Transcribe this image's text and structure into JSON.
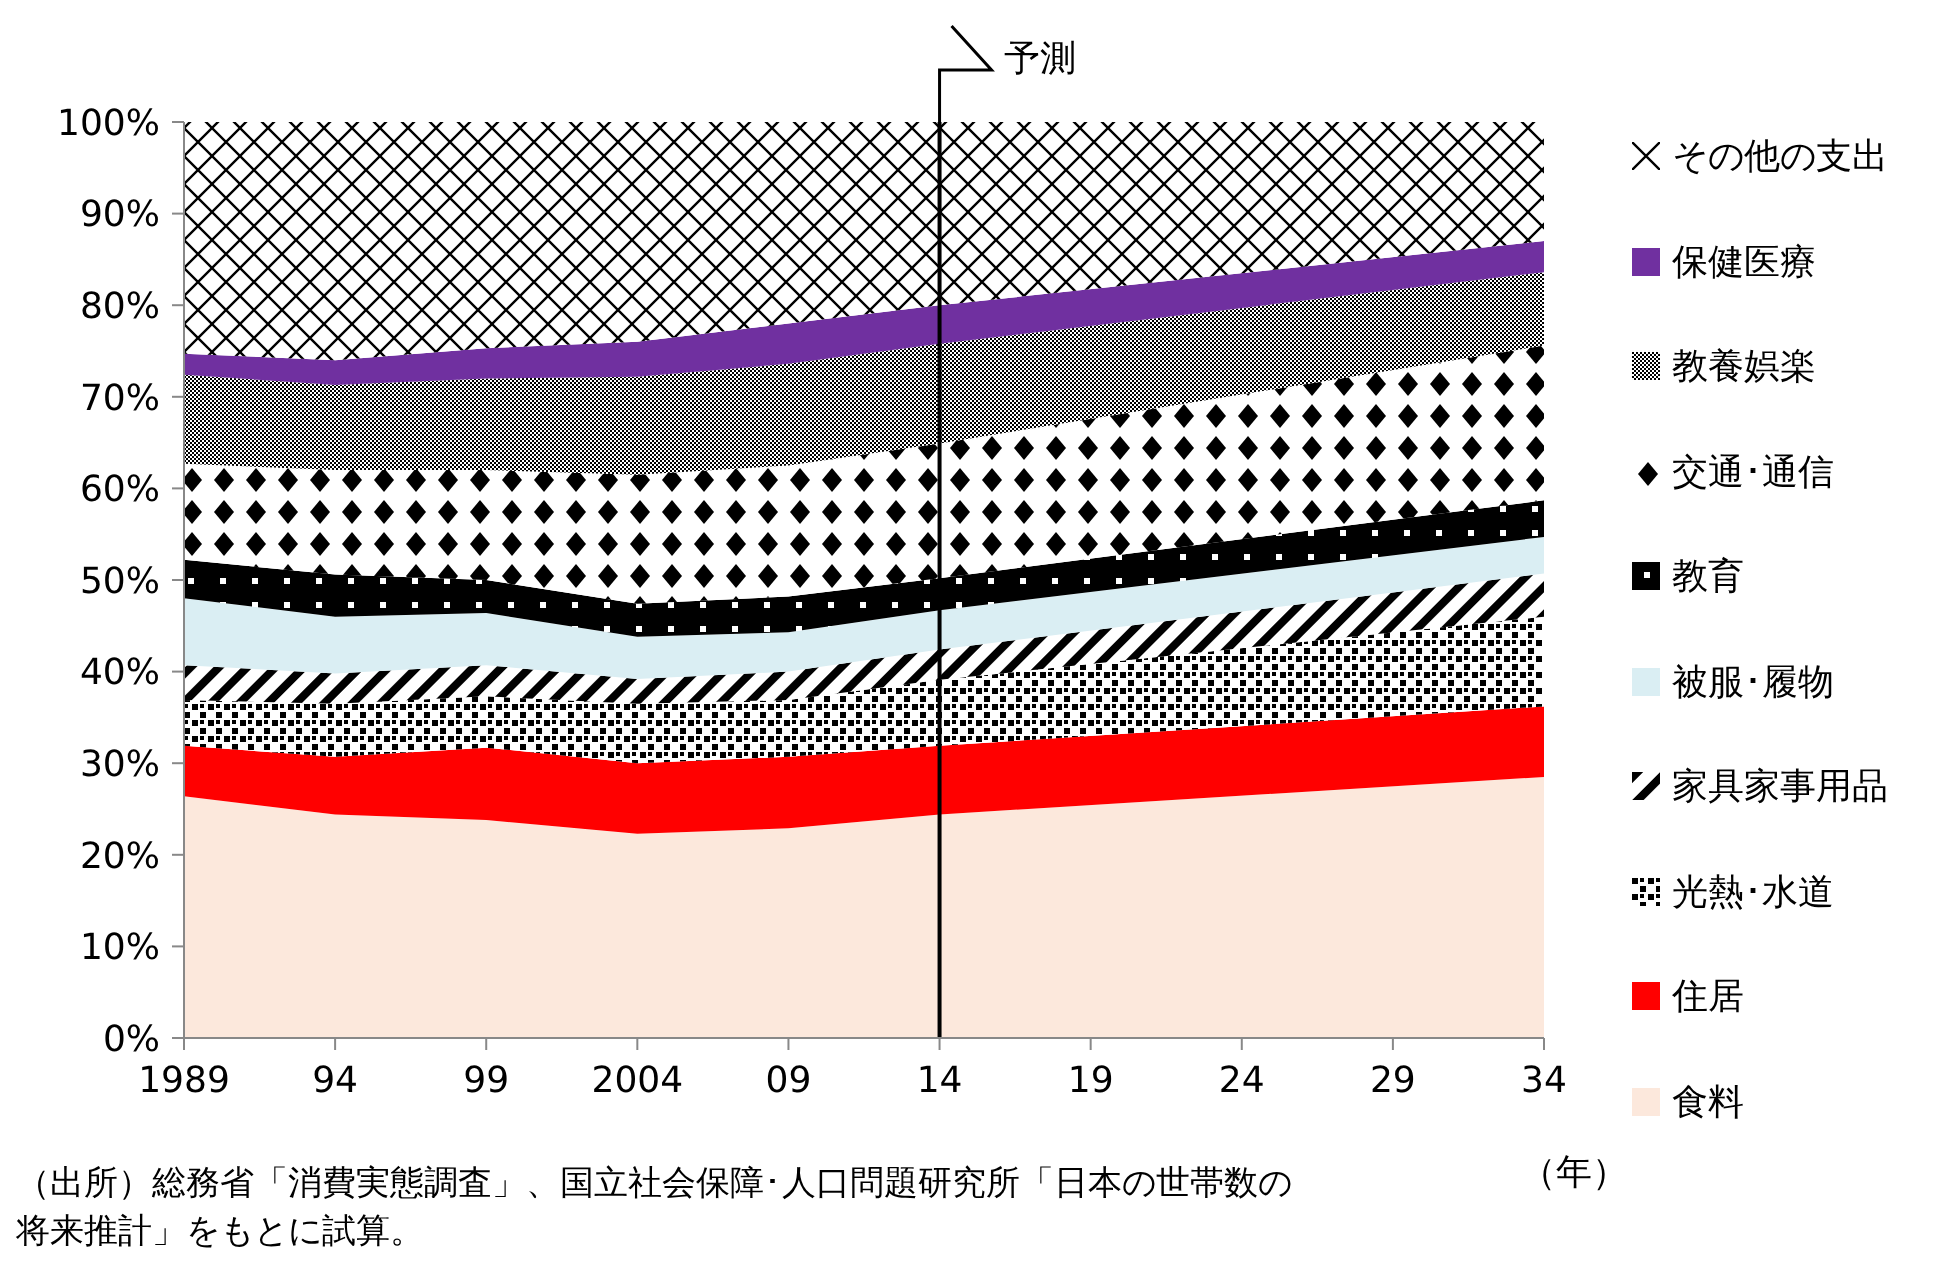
{
  "chart_data": {
    "type": "area",
    "stacked": true,
    "x": [
      1989,
      1994,
      1999,
      2004,
      2009,
      2014,
      2034
    ],
    "series": [
      {
        "name": "食料",
        "color": "#fce8dc",
        "values": [
          26.4,
          24.4,
          23.8,
          22.3,
          22.9,
          24.4,
          28.5
        ]
      },
      {
        "name": "住居",
        "color": "#ff0000",
        "values": [
          5.5,
          6.3,
          7.9,
          7.7,
          7.8,
          7.5,
          7.7
        ]
      },
      {
        "name": "光熱･水道",
        "color": "#000000",
        "values": [
          5.0,
          5.8,
          5.6,
          6.5,
          6.2,
          7.2,
          9.8
        ]
      },
      {
        "name": "家具家事用品",
        "color": "#000000",
        "values": [
          3.8,
          3.3,
          3.4,
          2.7,
          3.1,
          3.3,
          4.7
        ]
      },
      {
        "name": "被服･履物",
        "color": "#daeef3",
        "values": [
          7.3,
          6.2,
          5.7,
          4.6,
          4.3,
          4.3,
          4.0
        ]
      },
      {
        "name": "教育",
        "color": "#000000",
        "values": [
          4.2,
          4.6,
          3.6,
          3.6,
          3.9,
          3.5,
          4.0
        ]
      },
      {
        "name": "交通･通信",
        "color": "#000000",
        "values": [
          10.5,
          11.4,
          12.0,
          14.1,
          14.3,
          14.7,
          16.9
        ]
      },
      {
        "name": "教養娯楽",
        "color": "#000000",
        "values": [
          9.7,
          9.3,
          10.0,
          10.7,
          11.1,
          10.9,
          8.0
        ]
      },
      {
        "name": "保健医療",
        "color": "#7030a0",
        "values": [
          2.3,
          2.7,
          3.3,
          3.8,
          4.4,
          4.2,
          3.4
        ]
      },
      {
        "name": "その他の支出",
        "color": "#000000",
        "values": [
          25.3,
          26.0,
          24.7,
          24.0,
          22.0,
          20.0,
          13.0
        ]
      }
    ],
    "xlim": [
      1989,
      2034
    ],
    "xticks": [
      1989,
      {
        "value": 1994,
        "label": "94"
      },
      {
        "value": 1999,
        "label": "99"
      },
      2004,
      {
        "value": 2009,
        "label": "09"
      },
      {
        "value": 2014,
        "label": "14"
      },
      {
        "value": 2019,
        "label": "19"
      },
      {
        "value": 2024,
        "label": "24"
      },
      {
        "value": 2029,
        "label": "29"
      },
      {
        "value": 2034,
        "label": "34"
      }
    ],
    "ylim": [
      0,
      100
    ],
    "yticks": [
      {
        "value": 0,
        "label": "0%"
      },
      {
        "value": 10,
        "label": "10%"
      },
      {
        "value": 20,
        "label": "20%"
      },
      {
        "value": 30,
        "label": "30%"
      },
      {
        "value": 40,
        "label": "40%"
      },
      {
        "value": 50,
        "label": "50%"
      },
      {
        "value": 60,
        "label": "60%"
      },
      {
        "value": 70,
        "label": "70%"
      },
      {
        "value": 80,
        "label": "80%"
      },
      {
        "value": 90,
        "label": "90%"
      },
      {
        "value": 100,
        "label": "100%"
      }
    ],
    "xlabel": "（年）",
    "ref_lines": [
      {
        "axis": "x",
        "value": 2014,
        "label": "予測",
        "color": "#000000"
      }
    ],
    "legend": "right",
    "annotations": [
      "（出所）総務省「消費実態調査」、国立社会保障･人口問題研究所「日本の世帯数の将来推計」をもとに試算。"
    ]
  }
}
